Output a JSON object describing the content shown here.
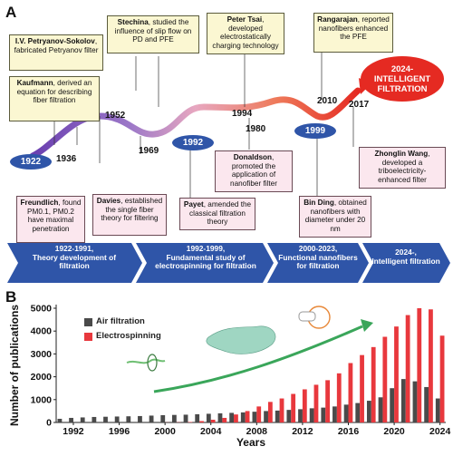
{
  "panel_a": {
    "letter": "A",
    "years": {
      "y1922": "1922",
      "y1936": "1936",
      "y1952": "1952",
      "y1969": "1969",
      "y1980": "1980",
      "y1992": "1992",
      "y1994": "1994",
      "y1999": "1999",
      "y2010": "2010",
      "y2017": "2017"
    },
    "intelligent": {
      "line1": "2024-",
      "line2": "INTELLIGENT",
      "line3": "FILTRATION"
    },
    "boxes": {
      "petryanov": {
        "name": "I.V. Petryanov-Sokolov",
        "text": ", fabricated Petryanov filter"
      },
      "kaufmann": {
        "name": "Kaufmann",
        "text": ", derived an equation for describing fiber filtration"
      },
      "stechina": {
        "name": "Stechina",
        "text": ", studied the influence of slip flow on PD and PFE"
      },
      "tsai": {
        "name": "Peter Tsai",
        "text": ", developed electrostatically charging technology"
      },
      "rangarajan": {
        "name": "Rangarajan",
        "text": ", reported nanofibers enhanced the PFE"
      },
      "freundlich": {
        "name": "Freundlich",
        "text": ", found PM0.1, PM0.2 have maximal penetration"
      },
      "davies": {
        "name": "Davies",
        "text": ", established the single fiber theory for filtering"
      },
      "payet": {
        "name": "Payet",
        "text": ", amended the classical filtration theory"
      },
      "donaldson": {
        "name": "Donaldson",
        "text": ", promoted the application of nanofiber filter"
      },
      "binding": {
        "name": "Bin Ding",
        "text": ", obtained nanofibers with diameter under 20 nm"
      },
      "zhonglin": {
        "name": "Zhonglin Wang",
        "text": ", developed a triboelectricity-enhanced filter"
      }
    },
    "chevrons": [
      {
        "period": "1922-1991,",
        "text": "Theory development of filtration"
      },
      {
        "period": "1992-1999,",
        "text": "Fundamental study of electrospinning for filtration"
      },
      {
        "period": "2000-2023,",
        "text": "Functional nanofibers for filtration"
      },
      {
        "period": "2024-,",
        "text": "Intelligent filtration"
      }
    ],
    "colors": {
      "chevron": "#2f55a8",
      "wave_start": "#6a3fb0",
      "wave_mid": "#e79bb8",
      "wave_end": "#e52a22",
      "oval": "#2f55a8"
    }
  },
  "panel_b": {
    "letter": "B"
  },
  "chart_data": {
    "type": "bar",
    "xlabel": "Years",
    "ylabel": "Number of publications",
    "ylim": [
      0,
      5000
    ],
    "yticks": [
      0,
      1000,
      2000,
      3000,
      4000,
      5000
    ],
    "xticks": [
      1992,
      1996,
      2000,
      2004,
      2008,
      2012,
      2016,
      2020,
      2024
    ],
    "legend_placement": "top-left",
    "categories": [
      1991,
      1992,
      1993,
      1994,
      1995,
      1996,
      1997,
      1998,
      1999,
      2000,
      2001,
      2002,
      2003,
      2004,
      2005,
      2006,
      2007,
      2008,
      2009,
      2010,
      2011,
      2012,
      2013,
      2014,
      2015,
      2016,
      2017,
      2018,
      2019,
      2020,
      2021,
      2022,
      2023,
      2024
    ],
    "series": [
      {
        "name": "Air filtration",
        "color": "#4a4a4a",
        "values": [
          160,
          200,
          220,
          240,
          250,
          260,
          270,
          280,
          300,
          320,
          330,
          340,
          360,
          380,
          400,
          420,
          440,
          470,
          500,
          520,
          550,
          580,
          620,
          650,
          700,
          780,
          850,
          950,
          1100,
          1500,
          1900,
          1800,
          1550,
          1050
        ]
      },
      {
        "name": "Electrospinning",
        "color": "#e8383d",
        "values": [
          0,
          0,
          0,
          0,
          0,
          0,
          0,
          0,
          0,
          5,
          10,
          20,
          60,
          120,
          200,
          350,
          500,
          700,
          900,
          1050,
          1250,
          1450,
          1650,
          1850,
          2150,
          2600,
          2950,
          3300,
          3750,
          4200,
          4700,
          5000,
          4950,
          3800
        ]
      }
    ]
  }
}
